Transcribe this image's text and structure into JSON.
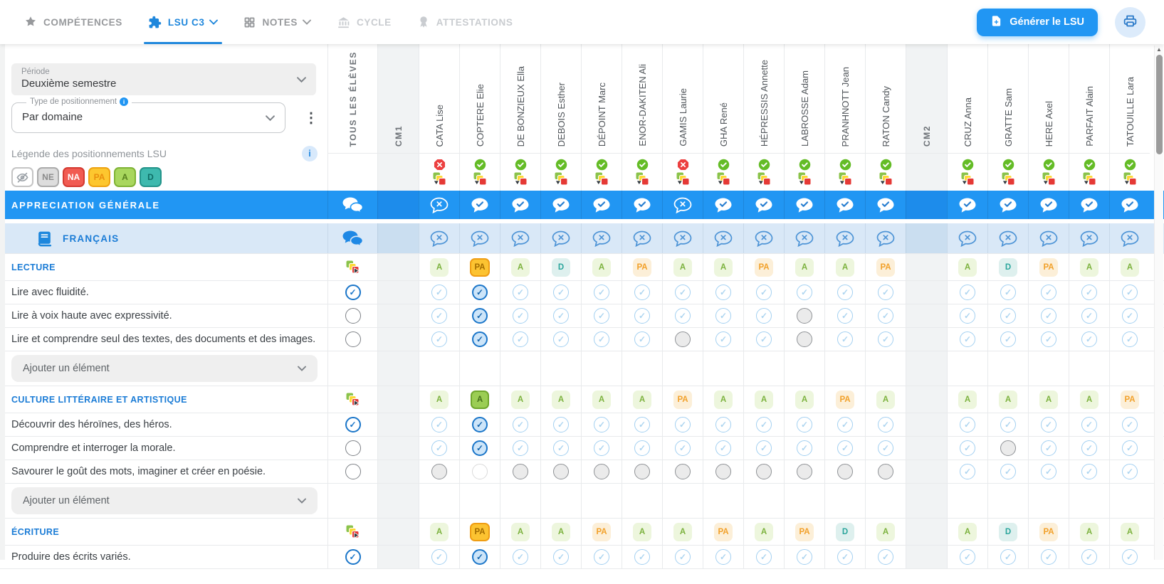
{
  "topbar": {
    "tabs": [
      {
        "id": "competences",
        "label": "COMPÉTENCES",
        "icon": "competences-icon",
        "state": "normal",
        "has_chevron": false
      },
      {
        "id": "lsu-c3",
        "label": "LSU C3",
        "icon": "puzzle-icon",
        "state": "active",
        "has_chevron": true
      },
      {
        "id": "notes",
        "label": "NOTES",
        "icon": "grid-icon",
        "state": "normal",
        "has_chevron": true
      },
      {
        "id": "cycle",
        "label": "CYCLE",
        "icon": "bank-icon",
        "state": "disabled",
        "has_chevron": false
      },
      {
        "id": "attestations",
        "label": "ATTESTATIONS",
        "icon": "medal-icon",
        "state": "disabled",
        "has_chevron": false
      }
    ],
    "generate_button_label": "Générer le LSU"
  },
  "filters": {
    "periode": {
      "label": "Période",
      "value": "Deuxième semestre"
    },
    "type": {
      "label": "Type de positionnement",
      "value": "Par domaine"
    },
    "legend_title": "Légende des positionnements LSU",
    "legend_badges": [
      {
        "code": "",
        "kind": "eye"
      },
      {
        "code": "NE",
        "kind": "ne"
      },
      {
        "code": "NA",
        "kind": "na"
      },
      {
        "code": "PA",
        "kind": "pa"
      },
      {
        "code": "A",
        "kind": "a"
      },
      {
        "code": "D",
        "kind": "d"
      }
    ]
  },
  "grid": {
    "all_students_label": "TOUS LES ÉLÈVES",
    "groups": [
      {
        "label": "CM1",
        "students": [
          {
            "name": "CATA Lise",
            "status": "error"
          },
          {
            "name": "COPTERE Elie",
            "status": "ok"
          },
          {
            "name": "DE BONZIEUX Ella",
            "status": "ok"
          },
          {
            "name": "DEBOIS Esther",
            "status": "ok"
          },
          {
            "name": "DÉPOINT Marc",
            "status": "ok"
          },
          {
            "name": "ENOR-DAKITEN Ali",
            "status": "ok"
          },
          {
            "name": "GAMIS Laurie",
            "status": "error"
          },
          {
            "name": "GHA René",
            "status": "ok"
          },
          {
            "name": "HÉPRESSIS Annette",
            "status": "ok"
          },
          {
            "name": "LABROSSE Adam",
            "status": "ok"
          },
          {
            "name": "PRANHNOTT Jean",
            "status": "ok"
          },
          {
            "name": "RATON Candy",
            "status": "ok"
          }
        ]
      },
      {
        "label": "CM2",
        "students": [
          {
            "name": "CRUZ Anna",
            "status": "ok"
          },
          {
            "name": "GRATTE Sam",
            "status": "ok"
          },
          {
            "name": "HERE Axel",
            "status": "ok"
          },
          {
            "name": "PARFAIT Alain",
            "status": "ok"
          },
          {
            "name": "TATOUILLE Lara",
            "status": "ok"
          }
        ]
      }
    ],
    "rows": [
      {
        "type": "appreciation",
        "label": "APPRECIATION GÉNÉRALE",
        "cells": [
          "x",
          "c",
          "c",
          "c",
          "c",
          "c",
          "x",
          "c",
          "c",
          "c",
          "c",
          "c",
          "c",
          "c",
          "c",
          "c",
          "c"
        ]
      },
      {
        "type": "subject",
        "label": "FRANÇAIS",
        "cells": [
          "x",
          "x",
          "x",
          "x",
          "x",
          "x",
          "x",
          "x",
          "x",
          "x",
          "x",
          "x",
          "x",
          "x",
          "x",
          "x",
          "x"
        ]
      },
      {
        "type": "domain",
        "label": "LECTURE",
        "cells": [
          "A",
          "PA*",
          "A",
          "D",
          "A",
          "PA",
          "A",
          "A",
          "PA",
          "A",
          "A",
          "PA",
          "A",
          "D",
          "PA",
          "A",
          "A"
        ]
      },
      {
        "type": "item",
        "label": "Lire avec fluidité.",
        "left": "on",
        "cells": [
          "c",
          "C",
          "c",
          "c",
          "c",
          "c",
          "c",
          "c",
          "c",
          "c",
          "c",
          "c",
          "c",
          "c",
          "c",
          "c",
          "c"
        ]
      },
      {
        "type": "item",
        "label": "Lire à voix haute avec expressivité.",
        "left": "off",
        "cells": [
          "c",
          "C",
          "c",
          "c",
          "c",
          "c",
          "c",
          "c",
          "c",
          "g",
          "c",
          "c",
          "c",
          "c",
          "c",
          "c",
          "c"
        ]
      },
      {
        "type": "item",
        "label": "Lire et comprendre seul des textes, des documents et des images.",
        "left": "off",
        "cells": [
          "c",
          "C",
          "c",
          "c",
          "c",
          "c",
          "g",
          "c",
          "c",
          "g",
          "c",
          "c",
          "c",
          "c",
          "c",
          "c",
          "c"
        ]
      },
      {
        "type": "add",
        "label": "Ajouter un élément"
      },
      {
        "type": "domain",
        "label": "CULTURE LITTÉRAIRE ET ARTISTIQUE",
        "cells": [
          "A",
          "A*",
          "A",
          "A",
          "A",
          "A",
          "PA",
          "A",
          "A",
          "A",
          "PA",
          "A",
          "A",
          "A",
          "A",
          "A",
          "PA"
        ]
      },
      {
        "type": "item",
        "label": "Découvrir des héroïnes, des héros.",
        "left": "on",
        "cells": [
          "c",
          "C",
          "c",
          "c",
          "c",
          "c",
          "c",
          "c",
          "c",
          "c",
          "c",
          "c",
          "c",
          "c",
          "c",
          "c",
          "c"
        ]
      },
      {
        "type": "item",
        "label": "Comprendre et interroger la morale.",
        "left": "off",
        "cells": [
          "c",
          "C",
          "c",
          "c",
          "c",
          "c",
          "c",
          "c",
          "c",
          "c",
          "c",
          "c",
          "c",
          "g",
          "c",
          "c",
          "c"
        ]
      },
      {
        "type": "item",
        "label": "Savourer le goût des mots, imaginer et créer en poésie.",
        "left": "off",
        "cells": [
          "g",
          "w",
          "g",
          "g",
          "g",
          "g",
          "g",
          "g",
          "g",
          "g",
          "g",
          "g",
          "c",
          "c",
          "c",
          "c",
          "c"
        ]
      },
      {
        "type": "add",
        "label": "Ajouter un élément"
      },
      {
        "type": "domain",
        "label": "ÉCRITURE",
        "cells": [
          "A",
          "PA*",
          "A",
          "A",
          "PA",
          "A",
          "A",
          "PA",
          "A",
          "PA",
          "D",
          "A",
          "A",
          "D",
          "PA",
          "A",
          "A"
        ]
      },
      {
        "type": "item",
        "label": "Produire des écrits variés.",
        "left": "on",
        "cells": [
          "c",
          "C",
          "c",
          "c",
          "c",
          "c",
          "c",
          "c",
          "c",
          "c",
          "c",
          "c",
          "c",
          "c",
          "c",
          "c",
          "c"
        ]
      }
    ]
  },
  "colors": {
    "primary": "#2196f3",
    "appreciation_row": "#2196f3",
    "subject_row": "#d9e8f7",
    "domain_text": "#1b7cd6",
    "badge_a": "#7cb23e",
    "badge_pa": "#f2a12b",
    "badge_d": "#2ba69c",
    "legend_na": "#f15b52",
    "status_ok": "#64bc26",
    "status_error": "#ec4040"
  }
}
